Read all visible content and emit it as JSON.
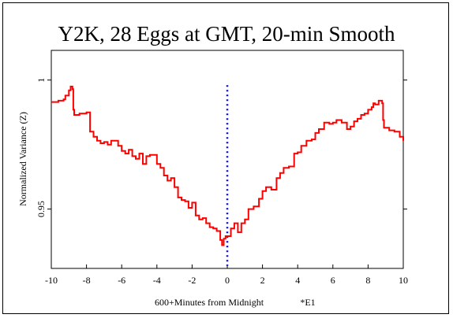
{
  "chart_data": {
    "type": "line",
    "title": "Y2K, 28 Eggs at GMT, 20-min Smooth",
    "xlabel": "600+Minutes from Midnight",
    "ylabel": "Normalized Variance (Z)",
    "annotation": "*E1",
    "xlim": [
      -10,
      10
    ],
    "ylim": [
      0.927,
      1.0115
    ],
    "x_ticks": [
      -10,
      -8,
      -6,
      -4,
      -2,
      0,
      2,
      4,
      6,
      8,
      10
    ],
    "x_tick_labels": [
      "-10",
      "-8",
      "-6",
      "-4",
      "-2",
      "0",
      "2",
      "4",
      "6",
      "8",
      "10"
    ],
    "y_ticks": [
      0.95,
      1.0
    ],
    "y_tick_labels": [
      "0.95",
      "1"
    ],
    "grid": false,
    "reference_line": {
      "x": 0,
      "y_range": [
        0.928,
        0.998
      ],
      "color": "#0000ff",
      "style": "dotted"
    },
    "series": [
      {
        "color": "#ff0000",
        "x": [
          -10,
          -9.6,
          -9.3,
          -9.2,
          -9.0,
          -8.9,
          -8.8,
          -8.75,
          -8.7,
          -8.4,
          -8.0,
          -7.8,
          -7.6,
          -7.4,
          -7.2,
          -7.0,
          -6.8,
          -6.6,
          -6.2,
          -6.0,
          -5.8,
          -5.6,
          -5.4,
          -5.2,
          -5.0,
          -4.8,
          -4.6,
          -4.4,
          -4.2,
          -4.0,
          -3.8,
          -3.6,
          -3.4,
          -3.2,
          -3.0,
          -2.8,
          -2.6,
          -2.4,
          -2.2,
          -2.0,
          -1.8,
          -1.6,
          -1.4,
          -1.2,
          -1.0,
          -0.8,
          -0.6,
          -0.4,
          -0.3,
          -0.2,
          -0.1,
          0.0,
          0.2,
          0.4,
          0.6,
          0.8,
          1.0,
          1.2,
          1.5,
          1.8,
          2.0,
          2.2,
          2.5,
          2.8,
          3.0,
          3.2,
          3.5,
          3.8,
          4.0,
          4.2,
          4.5,
          4.8,
          5.0,
          5.2,
          5.5,
          5.8,
          6.0,
          6.2,
          6.5,
          6.8,
          7.0,
          7.2,
          7.4,
          7.6,
          7.8,
          8.0,
          8.2,
          8.3,
          8.4,
          8.6,
          8.8,
          8.85,
          8.9,
          9.2,
          9.5,
          9.8,
          10.0
        ],
        "values": [
          0.9915,
          0.992,
          0.9925,
          0.994,
          0.996,
          0.9975,
          0.9965,
          0.9885,
          0.9865,
          0.987,
          0.9875,
          0.98,
          0.978,
          0.9765,
          0.9755,
          0.976,
          0.975,
          0.9765,
          0.9745,
          0.9725,
          0.9715,
          0.973,
          0.9705,
          0.9695,
          0.9715,
          0.9675,
          0.9705,
          0.971,
          0.971,
          0.9675,
          0.966,
          0.963,
          0.961,
          0.962,
          0.9585,
          0.9545,
          0.9535,
          0.953,
          0.9505,
          0.9525,
          0.9475,
          0.946,
          0.9465,
          0.9445,
          0.943,
          0.9425,
          0.9415,
          0.938,
          0.936,
          0.9385,
          0.9395,
          0.9395,
          0.9425,
          0.9445,
          0.941,
          0.9445,
          0.946,
          0.95,
          0.951,
          0.954,
          0.957,
          0.9585,
          0.9575,
          0.962,
          0.964,
          0.966,
          0.9665,
          0.9715,
          0.972,
          0.9745,
          0.9765,
          0.977,
          0.9795,
          0.981,
          0.9835,
          0.983,
          0.9835,
          0.9845,
          0.9835,
          0.981,
          0.982,
          0.984,
          0.985,
          0.9865,
          0.987,
          0.9885,
          0.9895,
          0.991,
          0.9905,
          0.992,
          0.991,
          0.9845,
          0.9815,
          0.9805,
          0.98,
          0.978,
          0.9765
        ]
      }
    ]
  }
}
